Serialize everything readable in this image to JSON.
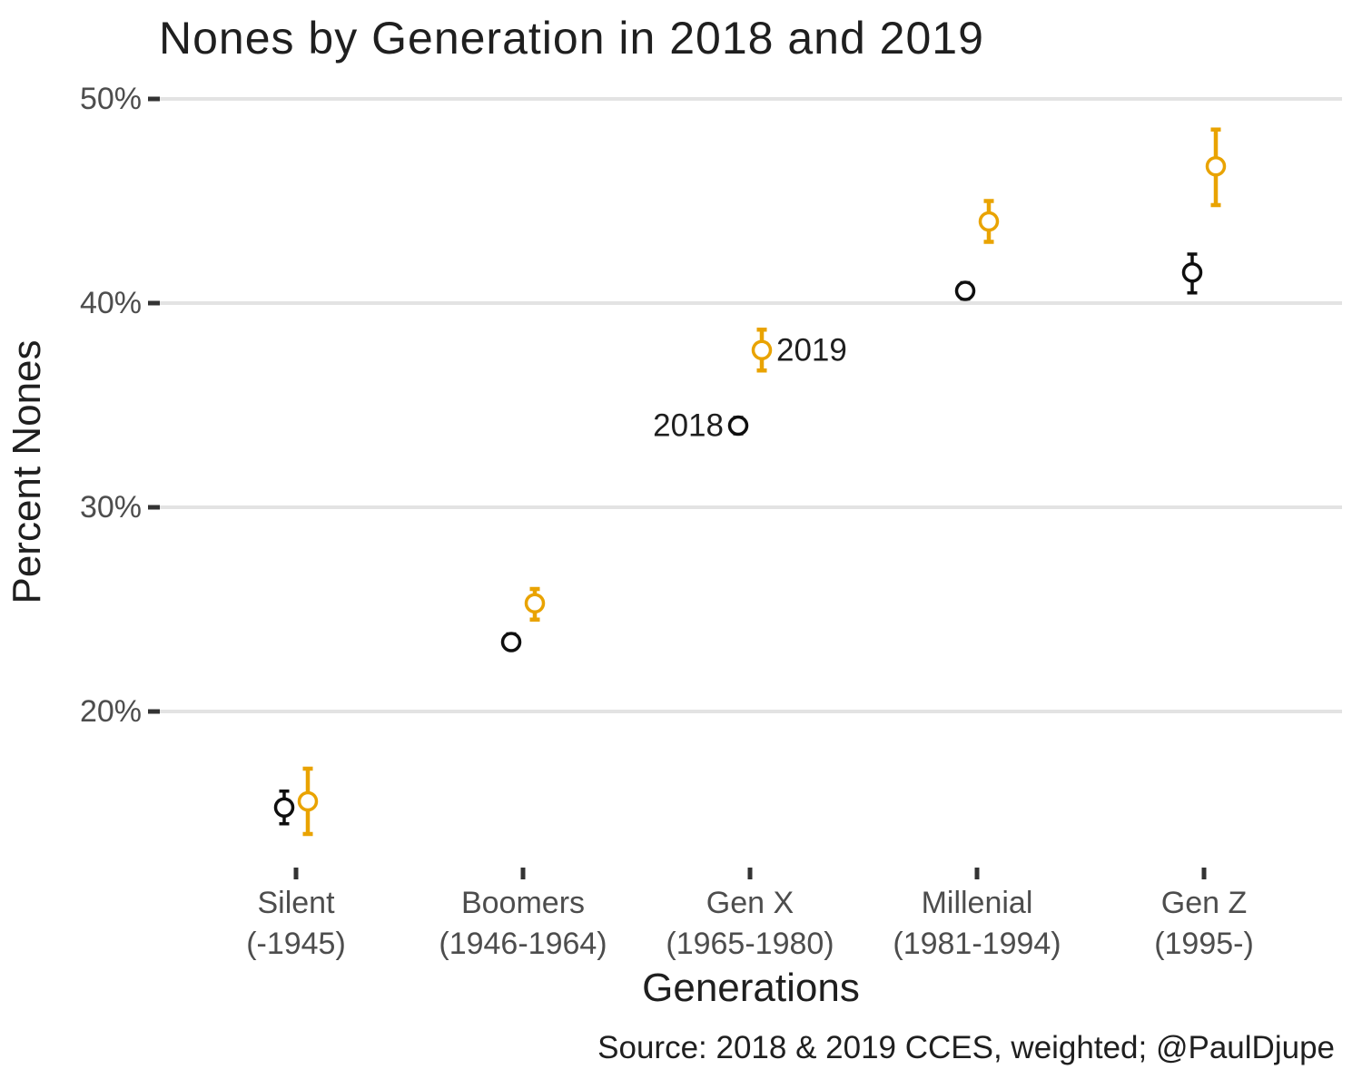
{
  "title": "Nones by Generation in 2018 and 2019",
  "chart_data": {
    "type": "scatter",
    "subtype": "dodged pointrange with error bars",
    "title": "Nones by Generation in 2018 and 2019",
    "xlabel": "Generations",
    "ylabel": "Percent Nones",
    "caption": "Source: 2018 & 2019 CCES, weighted; @PaulDjupe",
    "grid": "horizontal-only",
    "legend_position": "none (inline annotations)",
    "ylim": [
      12.5,
      51
    ],
    "y_ticks": [
      50,
      40,
      30,
      20
    ],
    "y_tick_labels": [
      "50%",
      "40%",
      "30%",
      "20%"
    ],
    "categories": [
      "Silent",
      "Boomers",
      "Gen X",
      "Millenial",
      "Gen Z"
    ],
    "category_sublabels": [
      "(-1945)",
      "(1946-1964)",
      "(1965-1980)",
      "(1981-1994)",
      "(1995-)"
    ],
    "series": [
      {
        "name": "2018",
        "color": "#0f0f0f",
        "values": [
          15.3,
          23.4,
          34.0,
          40.6,
          41.5
        ],
        "ci_low": [
          14.5,
          23.1,
          33.6,
          40.2,
          40.5
        ],
        "ci_high": [
          16.1,
          23.8,
          34.4,
          41.0,
          42.4
        ]
      },
      {
        "name": "2019",
        "color": "#E9A300",
        "values": [
          15.6,
          25.3,
          37.7,
          44.0,
          46.7
        ],
        "ci_low": [
          14.0,
          24.5,
          36.7,
          43.0,
          44.8
        ],
        "ci_high": [
          17.2,
          26.0,
          38.7,
          45.0,
          48.5
        ]
      }
    ],
    "annotations": [
      {
        "text": "2018",
        "series_index": 0,
        "category_index": 2,
        "side": "left"
      },
      {
        "text": "2019",
        "series_index": 1,
        "category_index": 2,
        "side": "right"
      }
    ],
    "colors": {
      "grid": "#E3E3E3",
      "tick": "#333333",
      "tick_label": "#4D4D4D",
      "text": "#1f1f1f",
      "background": "#ffffff"
    }
  }
}
